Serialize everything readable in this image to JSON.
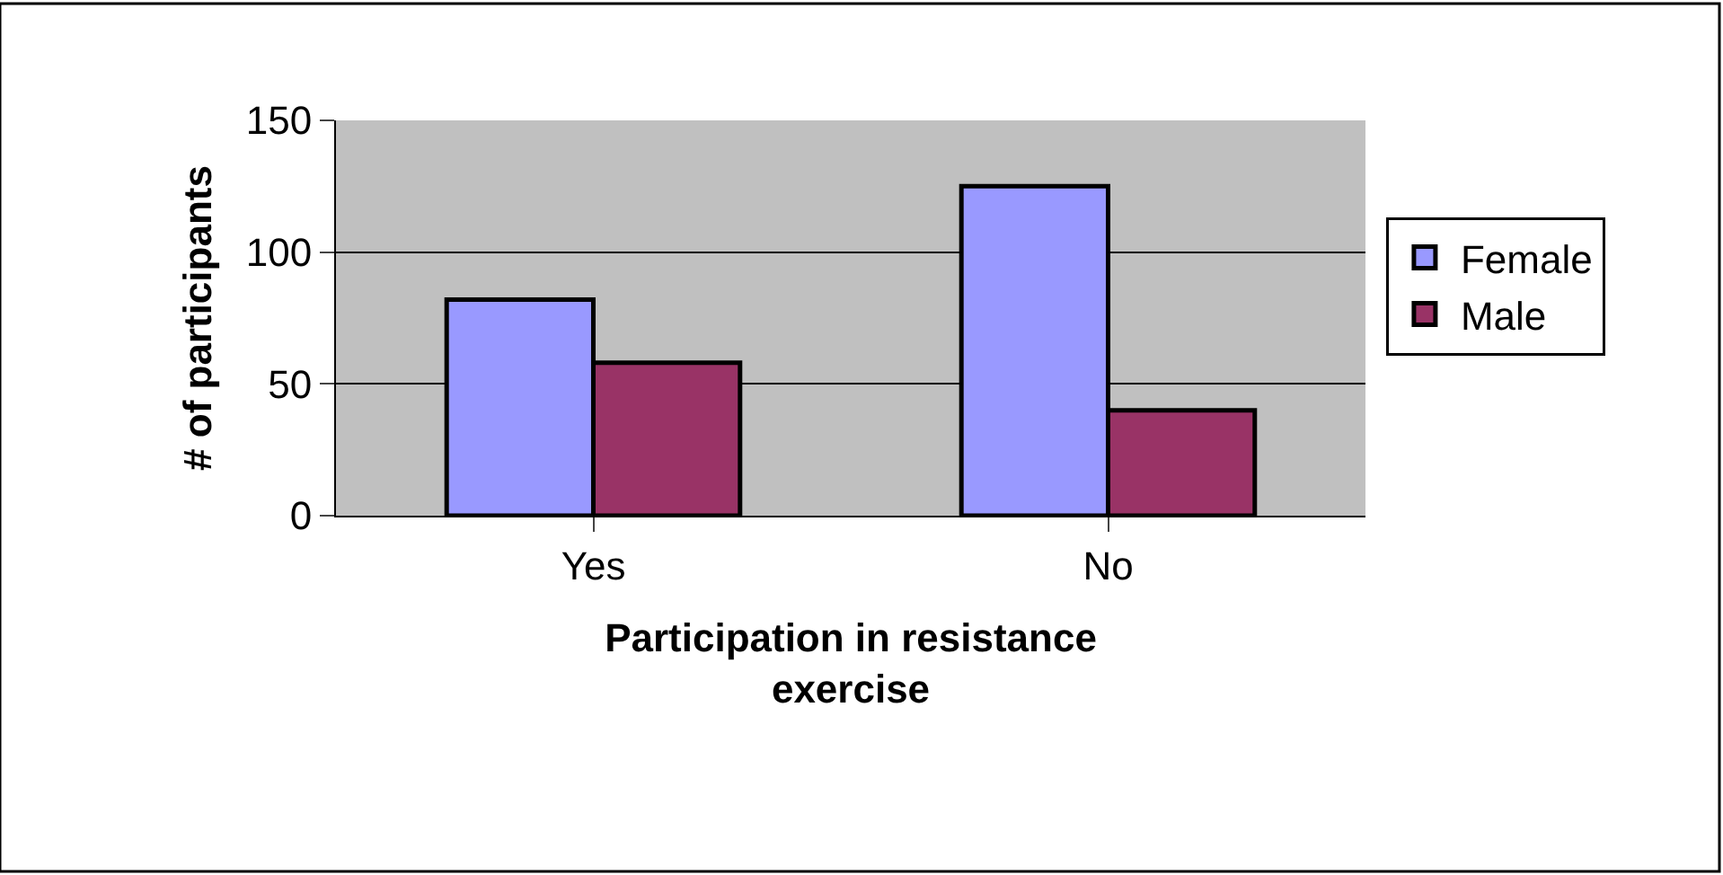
{
  "chart_data": {
    "type": "bar",
    "xlabel": "Participation in resistance exercise",
    "ylabel": "# of participants",
    "categories": [
      "Yes",
      "No"
    ],
    "series": [
      {
        "name": "Female",
        "color": "#9999ff",
        "values": [
          82,
          125
        ]
      },
      {
        "name": "Male",
        "color": "#993366",
        "values": [
          58,
          40
        ]
      }
    ],
    "ylim": [
      0,
      150
    ],
    "yticks": [
      0,
      50,
      100,
      150
    ],
    "grid": "y",
    "legend": "right"
  }
}
